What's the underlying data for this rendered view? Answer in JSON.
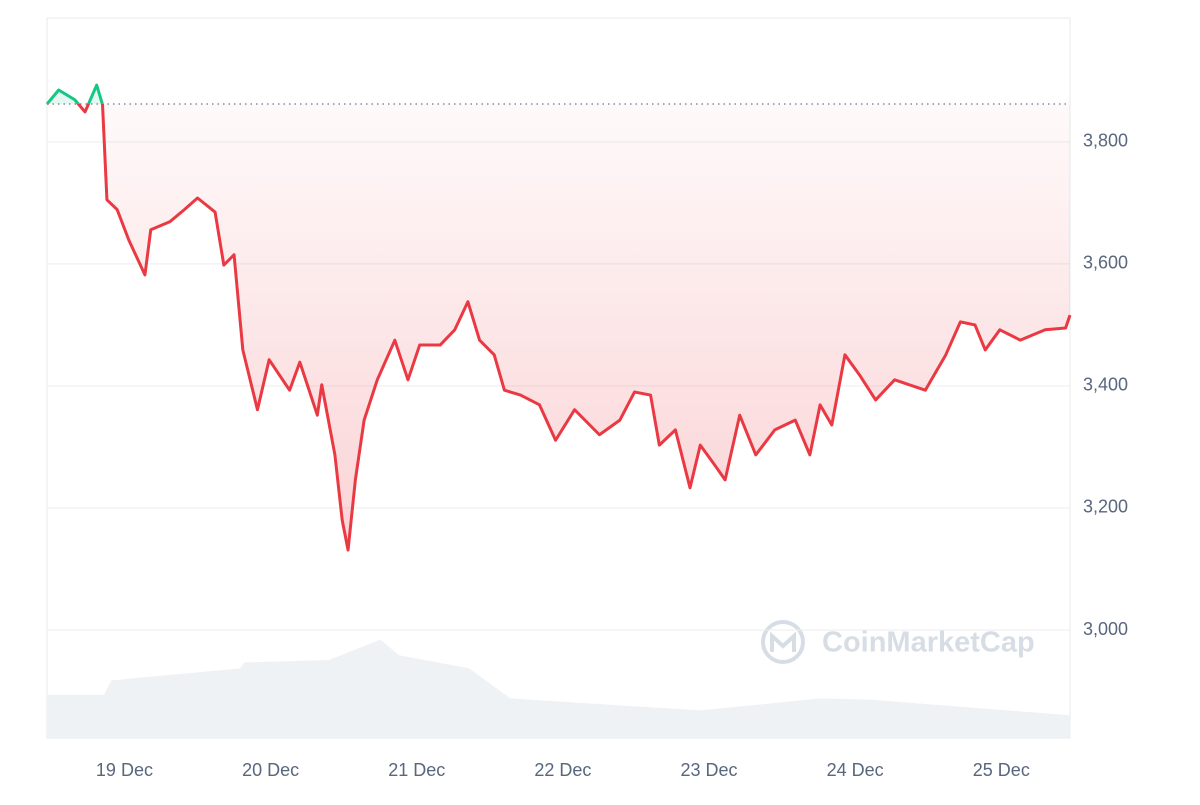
{
  "chart_data": {
    "type": "line",
    "watermark": "CoinMarketCap",
    "xlim": [
      -0.53,
      6.47
    ],
    "xticks": [
      {
        "value": 0,
        "label": "19 Dec"
      },
      {
        "value": 1,
        "label": "20 Dec"
      },
      {
        "value": 2,
        "label": "21 Dec"
      },
      {
        "value": 3,
        "label": "22 Dec"
      },
      {
        "value": 4,
        "label": "23 Dec"
      },
      {
        "value": 5,
        "label": "24 Dec"
      },
      {
        "value": 6,
        "label": "25 Dec"
      }
    ],
    "ylim": [
      2823,
      4003
    ],
    "yticks": [
      {
        "value": 3000,
        "label": "3,000"
      },
      {
        "value": 3200,
        "label": "3,200"
      },
      {
        "value": 3400,
        "label": "3,400"
      },
      {
        "value": 3600,
        "label": "3,600"
      },
      {
        "value": 3800,
        "label": "3,800"
      }
    ],
    "grid": true,
    "reference": 3862,
    "up_color": "#16c784",
    "down_color": "#ea3943",
    "series": [
      {
        "x": [
          -0.53,
          -0.45,
          -0.34,
          -0.27,
          -0.19,
          -0.15,
          -0.12,
          -0.05,
          0.03,
          0.14,
          0.18,
          0.31,
          0.41,
          0.5,
          0.62,
          0.68,
          0.75,
          0.81,
          0.91,
          0.99,
          1.13,
          1.2,
          1.32,
          1.35,
          1.44,
          1.49,
          1.53,
          1.58,
          1.64,
          1.73,
          1.85,
          1.94,
          2.02,
          2.16,
          2.26,
          2.35,
          2.43,
          2.53,
          2.6,
          2.71,
          2.84,
          2.95,
          3.08,
          3.25,
          3.39,
          3.49,
          3.6,
          3.66,
          3.77,
          3.87,
          3.94,
          4.04,
          4.11,
          4.21,
          4.32,
          4.45,
          4.59,
          4.69,
          4.76,
          4.84,
          4.93,
          5.03,
          5.14,
          5.27,
          5.48,
          5.62,
          5.72,
          5.82,
          5.89,
          5.99,
          6.13,
          6.3,
          6.44,
          6.47
        ],
        "values": [
          3862,
          3885,
          3869,
          3849,
          3893,
          3861,
          3705,
          3689,
          3639,
          3582,
          3656,
          3669,
          3689,
          3708,
          3685,
          3598,
          3615,
          3459,
          3361,
          3443,
          3393,
          3439,
          3352,
          3402,
          3287,
          3180,
          3131,
          3246,
          3344,
          3410,
          3475,
          3410,
          3467,
          3467,
          3492,
          3538,
          3475,
          3451,
          3393,
          3385,
          3369,
          3311,
          3361,
          3320,
          3344,
          3390,
          3385,
          3303,
          3328,
          3233,
          3303,
          3270,
          3246,
          3352,
          3287,
          3328,
          3344,
          3287,
          3369,
          3336,
          3451,
          3418,
          3377,
          3410,
          3393,
          3451,
          3505,
          3500,
          3459,
          3492,
          3475,
          3492,
          3495,
          3516
        ]
      }
    ],
    "volume": {
      "color": "#eff2f5",
      "ylim": [
        0,
        600
      ],
      "x": [
        -0.53,
        -0.14,
        -0.09,
        0.79,
        0.82,
        1.4,
        1.75,
        1.88,
        2.36,
        2.64,
        3.94,
        4.76,
        5.1,
        6.47
      ],
      "values": [
        36,
        36,
        48,
        58,
        63,
        65,
        82,
        69,
        58,
        33,
        23,
        33,
        32,
        19
      ]
    }
  }
}
